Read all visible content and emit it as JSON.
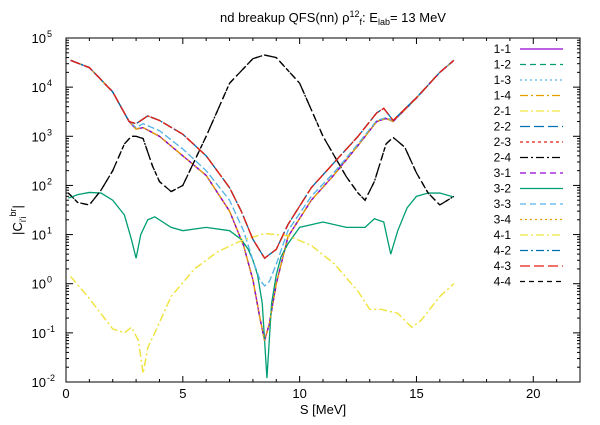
{
  "chart_data": {
    "type": "line",
    "title": {
      "pre": "nd breakup QFS(nn) ρ",
      "sup1": "12",
      "sub1": "f",
      "mid": ": E",
      "sub2": "lab",
      "post": "=   13 MeV"
    },
    "xlabel": "S [MeV]",
    "ylabel": {
      "base": "|C",
      "sub": "i'i",
      "sup": "br",
      "post": "|"
    },
    "xlim": [
      0,
      22
    ],
    "ylim": [
      0.01,
      100000
    ],
    "yscale": "log",
    "xticks": [
      0,
      5,
      10,
      15,
      20
    ],
    "yticks": [
      {
        "value": 0.01,
        "base": "10",
        "exp": "-2"
      },
      {
        "value": 0.1,
        "base": "10",
        "exp": "-1"
      },
      {
        "value": 1,
        "base": "10",
        "exp": "0"
      },
      {
        "value": 10,
        "base": "10",
        "exp": "1"
      },
      {
        "value": 100,
        "base": "10",
        "exp": "2"
      },
      {
        "value": 1000,
        "base": "10",
        "exp": "3"
      },
      {
        "value": 10000,
        "base": "10",
        "exp": "4"
      },
      {
        "value": 100000,
        "base": "10",
        "exp": "5"
      }
    ],
    "legend_position": "outside-right",
    "series": [
      {
        "name": "1-1",
        "color": "#9400d3",
        "dash": "",
        "x": [
          0.2,
          1.0,
          2.0,
          2.7,
          3.0,
          3.3,
          4.0,
          5.0,
          6.0,
          7.0,
          7.6,
          8.0,
          8.3,
          8.5,
          8.7,
          9.0,
          9.5,
          10.5,
          11.5,
          12.5,
          13.3,
          13.7,
          14.0,
          15.0,
          16.0,
          16.6
        ],
        "values": [
          35000,
          25000,
          8000,
          2000,
          1400,
          1500,
          1000,
          400,
          160,
          30,
          6,
          1.2,
          0.2,
          0.07,
          0.15,
          1.0,
          9,
          50,
          170,
          650,
          2000,
          2300,
          2000,
          6000,
          20000,
          35000
        ]
      },
      {
        "name": "1-2",
        "color": "#009e73",
        "dash": "6,4",
        "x": [
          0.2,
          1.0,
          2.0,
          2.7,
          3.0,
          3.3,
          4.0,
          5.0,
          6.0,
          7.0,
          7.6,
          8.0,
          8.3,
          8.5,
          8.7,
          9.0,
          9.5,
          10.5,
          11.5,
          12.5,
          13.3,
          13.7,
          14.0,
          15.0,
          16.0,
          16.6
        ],
        "values": [
          35000,
          25000,
          8000,
          2000,
          1400,
          1500,
          1000,
          400,
          160,
          30,
          6,
          1.2,
          0.2,
          0.07,
          0.15,
          1.0,
          9,
          50,
          170,
          650,
          2000,
          2300,
          2000,
          6000,
          20000,
          35000
        ]
      },
      {
        "name": "1-3",
        "color": "#56b4e9",
        "dash": "2,3",
        "x": [
          0.2,
          1.0,
          2.0,
          2.7,
          3.0,
          3.3,
          4.0,
          5.0,
          6.0,
          7.0,
          7.6,
          8.0,
          8.3,
          8.5,
          8.7,
          9.0,
          9.5,
          10.5,
          11.5,
          12.5,
          13.3,
          13.7,
          14.0,
          15.0,
          16.0,
          16.6
        ],
        "values": [
          35000,
          25000,
          8000,
          2000,
          1500,
          1800,
          1300,
          550,
          200,
          50,
          12,
          3,
          1.2,
          0.9,
          1.1,
          2.5,
          12,
          60,
          190,
          700,
          2100,
          2400,
          2100,
          6100,
          20000,
          35000
        ]
      },
      {
        "name": "1-4",
        "color": "#e69f00",
        "dash": "8,3,2,3",
        "x": [
          0.2,
          1.0,
          2.0,
          2.7,
          3.0,
          3.3,
          4.0,
          5.0,
          6.0,
          7.0,
          7.6,
          8.0,
          8.3,
          8.5,
          8.7,
          9.0,
          9.5,
          10.5,
          11.5,
          12.5,
          13.3,
          13.7,
          14.0,
          15.0,
          16.0,
          16.6
        ],
        "values": [
          35000,
          25000,
          8000,
          2000,
          1400,
          1500,
          1000,
          400,
          160,
          30,
          6,
          1.2,
          0.2,
          0.07,
          0.15,
          1.0,
          9,
          50,
          170,
          650,
          2000,
          2300,
          2000,
          6000,
          20000,
          35000
        ]
      },
      {
        "name": "2-1",
        "color": "#f0e442",
        "dash": "8,3,2,3",
        "x": [
          0.2,
          1.0,
          2.0,
          2.5,
          2.8,
          3.1,
          3.3,
          3.5,
          3.8,
          4.5,
          5.5,
          6.5,
          7.5,
          8.5,
          9.5,
          10.5,
          11.5,
          12.5,
          13.0,
          13.5,
          14.2,
          14.8,
          15.2,
          16.0,
          16.6
        ],
        "values": [
          1.4,
          0.5,
          0.12,
          0.1,
          0.13,
          0.07,
          0.015,
          0.05,
          0.1,
          0.55,
          2,
          4.5,
          7.5,
          10.5,
          9.5,
          6,
          2.5,
          0.7,
          0.3,
          0.3,
          0.25,
          0.13,
          0.18,
          0.55,
          1.0
        ]
      },
      {
        "name": "2-2",
        "color": "#0072b2",
        "dash": "10,4",
        "x": [
          0.2,
          1.0,
          2.0,
          2.7,
          3.0,
          3.5,
          4.0,
          5.0,
          6.0,
          7.0,
          7.5,
          8.0,
          8.5,
          9.0,
          9.5,
          10.5,
          11.5,
          12.5,
          13.3,
          13.6,
          14.0,
          15.0,
          16.0,
          16.6
        ],
        "values": [
          35000,
          25000,
          8000,
          2000,
          1800,
          2600,
          2100,
          1100,
          400,
          90,
          30,
          8,
          3.3,
          5,
          16,
          90,
          300,
          1000,
          3000,
          3700,
          2100,
          6100,
          20000,
          35000
        ]
      },
      {
        "name": "2-3",
        "color": "#e51e10",
        "dash": "3,3",
        "x": [
          0.2,
          1.0,
          2.0,
          2.7,
          3.0,
          3.5,
          4.0,
          5.0,
          6.0,
          7.0,
          7.5,
          8.0,
          8.5,
          9.0,
          9.5,
          10.5,
          11.5,
          12.5,
          13.3,
          13.6,
          14.0,
          15.0,
          16.0,
          16.6
        ],
        "values": [
          35000,
          25000,
          8000,
          2000,
          1800,
          2600,
          2100,
          1100,
          400,
          90,
          30,
          8,
          3.3,
          5,
          16,
          90,
          300,
          1000,
          3000,
          3700,
          2100,
          6100,
          20000,
          35000
        ]
      },
      {
        "name": "2-4",
        "color": "#000000",
        "dash": "8,3,2,3",
        "x": [
          0.1,
          0.5,
          1.0,
          1.5,
          2.0,
          2.5,
          2.8,
          3.0,
          3.3,
          3.7,
          4.0,
          4.5,
          5.0,
          6.0,
          7.0,
          8.0,
          8.5,
          9.0,
          10.0,
          11.0,
          12.0,
          12.5,
          12.8,
          13.2,
          13.7,
          14.0,
          14.5,
          15.0,
          15.5,
          16.0,
          16.6
        ],
        "values": [
          70,
          45,
          40,
          80,
          200,
          700,
          1000,
          1000,
          900,
          250,
          120,
          75,
          100,
          1000,
          12000,
          38000,
          45000,
          40000,
          12000,
          1000,
          150,
          70,
          50,
          120,
          700,
          950,
          600,
          180,
          70,
          40,
          60
        ]
      },
      {
        "name": "3-1",
        "color": "#9400d3",
        "dash": "6,4",
        "x": [
          0.2,
          1.0,
          2.0,
          2.7,
          3.0,
          3.3,
          4.0,
          5.0,
          6.0,
          7.0,
          7.6,
          8.0,
          8.3,
          8.5,
          8.7,
          9.0,
          9.5,
          10.5,
          11.5,
          12.5,
          13.3,
          13.7,
          14.0,
          15.0,
          16.0,
          16.6
        ],
        "values": [
          35000,
          25000,
          8000,
          2000,
          1400,
          1500,
          1000,
          400,
          160,
          30,
          6,
          1.2,
          0.2,
          0.07,
          0.15,
          1.0,
          9,
          50,
          170,
          650,
          2000,
          2300,
          2000,
          6000,
          20000,
          35000
        ]
      },
      {
        "name": "3-2",
        "color": "#009e73",
        "dash": "",
        "x": [
          0.1,
          0.5,
          1.0,
          1.5,
          2.0,
          2.5,
          2.8,
          3.0,
          3.2,
          3.5,
          3.8,
          4.5,
          5.0,
          6.0,
          7.0,
          7.5,
          7.8,
          8.0,
          8.2,
          8.4,
          8.6,
          8.8,
          9.0,
          9.2,
          9.5,
          10.0,
          11.0,
          12.0,
          12.8,
          13.2,
          13.6,
          13.9,
          14.2,
          14.6,
          15.0,
          15.5,
          16.0,
          16.6
        ],
        "values": [
          55,
          65,
          72,
          70,
          50,
          25,
          8,
          3.3,
          10,
          20,
          23,
          14,
          12,
          14,
          12,
          8,
          5,
          3,
          1.5,
          0.4,
          0.012,
          0.4,
          1.5,
          3.5,
          6.5,
          14,
          18,
          14,
          14,
          21,
          18,
          4,
          12,
          35,
          60,
          70,
          70,
          58
        ]
      },
      {
        "name": "3-3",
        "color": "#56b4e9",
        "dash": "6,4",
        "x": [
          0.2,
          1.0,
          2.0,
          2.7,
          3.0,
          3.3,
          4.0,
          5.0,
          6.0,
          7.0,
          7.6,
          8.0,
          8.3,
          8.5,
          8.7,
          9.0,
          9.5,
          10.5,
          11.5,
          12.5,
          13.3,
          13.7,
          14.0,
          15.0,
          16.0,
          16.6
        ],
        "values": [
          35000,
          25000,
          8000,
          2000,
          1500,
          1800,
          1300,
          550,
          200,
          50,
          12,
          3,
          1.2,
          0.9,
          1.1,
          2.5,
          12,
          60,
          190,
          700,
          2100,
          2400,
          2100,
          6100,
          20000,
          35000
        ]
      },
      {
        "name": "3-4",
        "color": "#e69f00",
        "dash": "2,3",
        "x": [
          0.2,
          1.0,
          2.0,
          2.7,
          3.0,
          3.3,
          4.0,
          5.0,
          6.0,
          7.0,
          7.6,
          8.0,
          8.3,
          8.5,
          8.7,
          9.0,
          9.5,
          10.5,
          11.5,
          12.5,
          13.3,
          13.7,
          14.0,
          15.0,
          16.0,
          16.6
        ],
        "values": [
          35000,
          25000,
          8000,
          2000,
          1400,
          1500,
          1000,
          400,
          160,
          30,
          6,
          1.2,
          0.2,
          0.07,
          0.15,
          1.0,
          9,
          50,
          170,
          650,
          2000,
          2300,
          2000,
          6000,
          20000,
          35000
        ]
      },
      {
        "name": "4-1",
        "color": "#f0e442",
        "dash": "8,3,2,3",
        "x": [
          0.2,
          1.0,
          2.0,
          2.5,
          2.8,
          3.1,
          3.3,
          3.5,
          3.8,
          4.5,
          5.5,
          6.5,
          7.5,
          8.5,
          9.5,
          10.5,
          11.5,
          12.5,
          13.0,
          13.5,
          14.2,
          14.8,
          15.2,
          16.0,
          16.6
        ],
        "values": [
          1.4,
          0.5,
          0.12,
          0.1,
          0.13,
          0.07,
          0.015,
          0.05,
          0.1,
          0.55,
          2,
          4.5,
          7.5,
          10.5,
          9.5,
          6,
          2.5,
          0.7,
          0.3,
          0.3,
          0.25,
          0.13,
          0.18,
          0.55,
          1.0
        ]
      },
      {
        "name": "4-2",
        "color": "#0072b2",
        "dash": "8,3,2,3",
        "x": [
          0.2,
          1.0,
          2.0,
          2.7,
          3.0,
          3.5,
          4.0,
          5.0,
          6.0,
          7.0,
          7.5,
          8.0,
          8.5,
          9.0,
          9.5,
          10.5,
          11.5,
          12.5,
          13.3,
          13.6,
          14.0,
          15.0,
          16.0,
          16.6
        ],
        "values": [
          35000,
          25000,
          8000,
          2000,
          1800,
          2600,
          2100,
          1100,
          400,
          90,
          30,
          8,
          3.3,
          5,
          16,
          90,
          300,
          1000,
          3000,
          3700,
          2100,
          6100,
          20000,
          35000
        ]
      },
      {
        "name": "4-3",
        "color": "#e51e10",
        "dash": "10,4",
        "x": [
          0.2,
          1.0,
          2.0,
          2.7,
          3.0,
          3.5,
          4.0,
          5.0,
          6.0,
          7.0,
          7.5,
          8.0,
          8.5,
          9.0,
          9.5,
          10.5,
          11.5,
          12.5,
          13.3,
          13.6,
          14.0,
          15.0,
          16.0,
          16.6
        ],
        "values": [
          35000,
          25000,
          8000,
          2000,
          1800,
          2600,
          2100,
          1100,
          400,
          90,
          30,
          8,
          3.3,
          5,
          16,
          90,
          300,
          1000,
          3000,
          3700,
          2100,
          6100,
          20000,
          35000
        ]
      },
      {
        "name": "4-4",
        "color": "#000000",
        "dash": "5,4",
        "x": [
          0.1,
          0.5,
          1.0,
          1.5,
          2.0,
          2.5,
          2.8,
          3.0,
          3.3,
          3.7,
          4.0,
          4.5,
          5.0,
          6.0,
          7.0,
          8.0,
          8.5,
          9.0,
          10.0,
          11.0,
          12.0,
          12.5,
          12.8,
          13.2,
          13.7,
          14.0,
          14.5,
          15.0,
          15.5,
          16.0,
          16.6
        ],
        "values": [
          70,
          45,
          40,
          80,
          200,
          700,
          1000,
          1000,
          900,
          250,
          120,
          75,
          100,
          1000,
          12000,
          38000,
          45000,
          40000,
          12000,
          1000,
          150,
          70,
          50,
          120,
          700,
          950,
          600,
          180,
          70,
          40,
          60
        ]
      }
    ]
  }
}
